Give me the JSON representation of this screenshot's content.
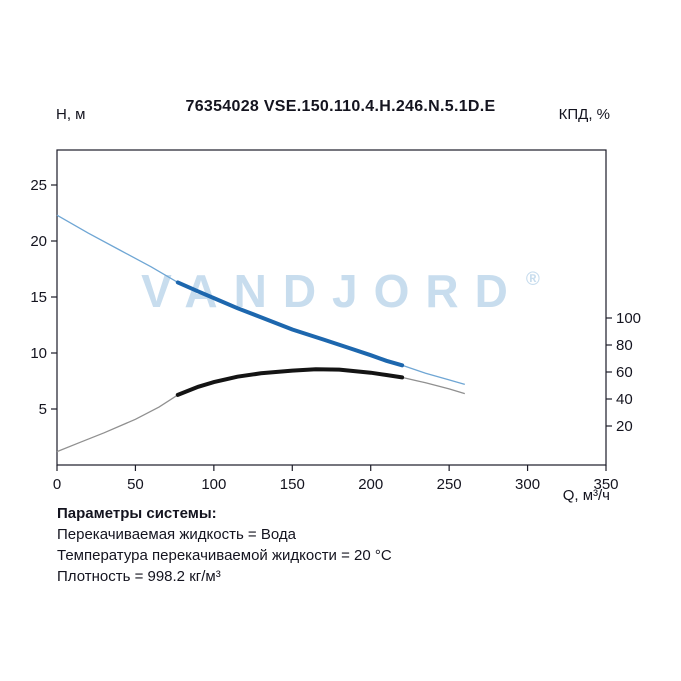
{
  "watermark": {
    "text": "VANDJORD",
    "symbol": "®",
    "color": "#c8ddee"
  },
  "params": {
    "heading": "Параметры системы:",
    "lines": [
      "Перекачиваемая жидкость = Вода",
      "Температура перекачиваемой жидкости = 20 °C",
      "Плотность = 998.2 кг/м³"
    ]
  },
  "chart_data": {
    "type": "line",
    "title": "76354028 VSE.150.110.4.H.246.N.5.1D.E",
    "xlabel": "Q, м³/ч",
    "ylabel_left": "Н, м",
    "ylabel_right": "КПД, %",
    "x_range": [
      0,
      350
    ],
    "y_left_range": [
      0,
      28.125
    ],
    "x_ticks": [
      0,
      50,
      100,
      150,
      200,
      250,
      300,
      350
    ],
    "y_left_ticks": [
      5,
      10,
      15,
      20,
      25
    ],
    "y_right_ticks": [
      20,
      40,
      60,
      80,
      100
    ],
    "grid": false,
    "legend": "none",
    "duty_range_q": [
      77,
      220
    ],
    "series": [
      {
        "name": "head",
        "axis": "left",
        "color": "#1d67ae",
        "thin_color": "#6fa6d4",
        "points": [
          [
            0,
            22.3
          ],
          [
            20,
            20.7
          ],
          [
            40,
            19.2
          ],
          [
            60,
            17.7
          ],
          [
            77,
            16.3
          ],
          [
            90,
            15.5
          ],
          [
            100,
            14.9
          ],
          [
            115,
            14.0
          ],
          [
            130,
            13.2
          ],
          [
            150,
            12.1
          ],
          [
            170,
            11.2
          ],
          [
            185,
            10.5
          ],
          [
            200,
            9.8
          ],
          [
            210,
            9.3
          ],
          [
            220,
            8.9
          ],
          [
            235,
            8.2
          ],
          [
            250,
            7.6
          ],
          [
            260,
            7.2
          ]
        ]
      },
      {
        "name": "efficiency",
        "axis": "right",
        "color": "#141414",
        "thin_color": "#909090",
        "points": [
          [
            0,
            1
          ],
          [
            15,
            8
          ],
          [
            30,
            15
          ],
          [
            50,
            25
          ],
          [
            65,
            34
          ],
          [
            77,
            43
          ],
          [
            90,
            49
          ],
          [
            100,
            52.5
          ],
          [
            115,
            56.5
          ],
          [
            130,
            59
          ],
          [
            150,
            61
          ],
          [
            165,
            62
          ],
          [
            180,
            61.8
          ],
          [
            200,
            59.5
          ],
          [
            210,
            57.8
          ],
          [
            220,
            56
          ],
          [
            235,
            52
          ],
          [
            250,
            47.5
          ],
          [
            260,
            44
          ]
        ]
      }
    ]
  }
}
